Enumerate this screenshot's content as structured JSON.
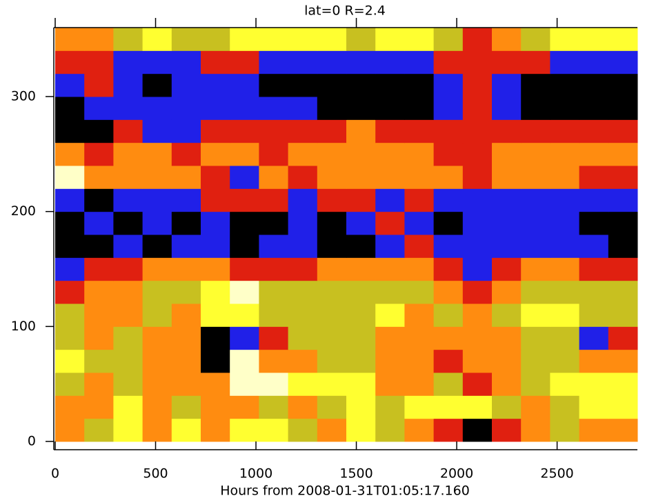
{
  "chart_data": {
    "type": "heatmap",
    "title": "lat=0  R=2.4",
    "x_label": "Hours from 2008-01-31T01:05:17.160",
    "xlim": [
      0,
      2900
    ],
    "ylim": [
      0,
      360
    ],
    "xticks": [
      0,
      500,
      1000,
      1500,
      2000,
      2500
    ],
    "yticks": [
      0,
      100,
      200,
      300
    ],
    "xbins": [
      0,
      145,
      290,
      435,
      580,
      725,
      870,
      1015,
      1160,
      1305,
      1450,
      1595,
      1740,
      1885,
      2030,
      2175,
      2320,
      2465,
      2610,
      2755,
      2900
    ],
    "ybins": [
      0,
      20,
      40,
      60,
      80,
      100,
      120,
      140,
      160,
      180,
      200,
      220,
      240,
      260,
      280,
      300,
      320,
      340,
      360
    ],
    "colorscale": [
      "#000000",
      "#2020e8",
      "#e02010",
      "#ff8c10",
      "#c8c020",
      "#ffff30",
      "#ffffc8"
    ],
    "z": [
      [
        3,
        4,
        5,
        3,
        5,
        3,
        5,
        5,
        4,
        3,
        5,
        4,
        3,
        2,
        0,
        2,
        3,
        4,
        3,
        3
      ],
      [
        3,
        3,
        5,
        3,
        4,
        3,
        3,
        4,
        3,
        4,
        5,
        4,
        5,
        5,
        5,
        4,
        3,
        4,
        5,
        5
      ],
      [
        4,
        3,
        4,
        3,
        3,
        3,
        6,
        6,
        5,
        5,
        5,
        3,
        3,
        4,
        2,
        3,
        4,
        5,
        5,
        5
      ],
      [
        5,
        4,
        4,
        3,
        3,
        0,
        6,
        3,
        3,
        4,
        4,
        3,
        3,
        2,
        3,
        3,
        4,
        4,
        3,
        3
      ],
      [
        4,
        3,
        4,
        3,
        3,
        0,
        1,
        2,
        4,
        4,
        4,
        3,
        3,
        3,
        3,
        3,
        4,
        4,
        1,
        2
      ],
      [
        4,
        3,
        3,
        4,
        3,
        5,
        5,
        4,
        4,
        4,
        4,
        5,
        3,
        4,
        3,
        4,
        5,
        5,
        4,
        4
      ],
      [
        2,
        3,
        3,
        4,
        4,
        5,
        6,
        4,
        4,
        4,
        4,
        4,
        4,
        3,
        2,
        3,
        4,
        4,
        4,
        4
      ],
      [
        1,
        2,
        2,
        3,
        3,
        3,
        2,
        2,
        2,
        3,
        3,
        3,
        3,
        2,
        1,
        2,
        3,
        3,
        2,
        2
      ],
      [
        0,
        0,
        1,
        0,
        1,
        1,
        0,
        1,
        1,
        0,
        0,
        1,
        2,
        1,
        1,
        1,
        1,
        1,
        1,
        0
      ],
      [
        0,
        1,
        0,
        1,
        0,
        1,
        0,
        0,
        1,
        0,
        1,
        2,
        1,
        0,
        1,
        1,
        1,
        1,
        0,
        0
      ],
      [
        1,
        0,
        1,
        1,
        1,
        2,
        2,
        2,
        1,
        2,
        2,
        1,
        2,
        1,
        1,
        1,
        1,
        1,
        1,
        1
      ],
      [
        6,
        3,
        3,
        3,
        3,
        2,
        1,
        3,
        2,
        3,
        3,
        3,
        3,
        3,
        2,
        3,
        3,
        3,
        2,
        2
      ],
      [
        3,
        2,
        3,
        3,
        2,
        3,
        3,
        2,
        3,
        3,
        3,
        3,
        3,
        2,
        2,
        3,
        3,
        3,
        3,
        3
      ],
      [
        0,
        0,
        2,
        1,
        1,
        2,
        2,
        2,
        2,
        2,
        3,
        2,
        2,
        2,
        2,
        2,
        2,
        2,
        2,
        2
      ],
      [
        0,
        1,
        1,
        1,
        1,
        1,
        1,
        1,
        1,
        0,
        0,
        0,
        0,
        1,
        2,
        1,
        0,
        0,
        0,
        0
      ],
      [
        1,
        2,
        1,
        0,
        1,
        1,
        1,
        0,
        0,
        0,
        0,
        0,
        0,
        1,
        2,
        1,
        0,
        0,
        0,
        0
      ],
      [
        2,
        2,
        1,
        1,
        1,
        2,
        2,
        1,
        1,
        1,
        1,
        1,
        1,
        2,
        2,
        2,
        2,
        1,
        1,
        1
      ],
      [
        3,
        3,
        4,
        5,
        4,
        4,
        5,
        5,
        5,
        5,
        4,
        5,
        5,
        4,
        2,
        3,
        4,
        5,
        5,
        5
      ]
    ]
  }
}
